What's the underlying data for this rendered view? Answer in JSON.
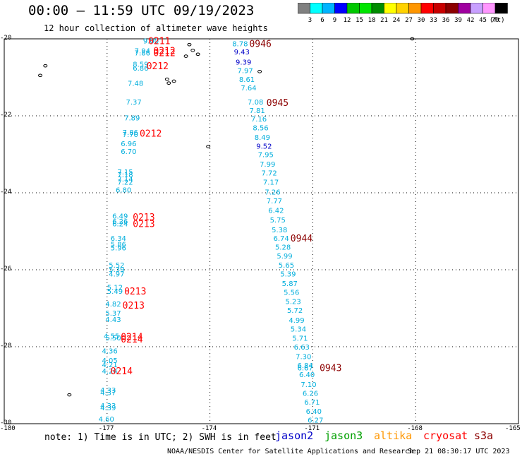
{
  "header": {
    "title": "00:00 — 11:59 UTC 09/19/2023",
    "subtitle": "12 hour collection of altimeter wave heights"
  },
  "colorbar": {
    "ticks": [
      "3",
      "6",
      "9",
      "12",
      "15",
      "18",
      "21",
      "24",
      "27",
      "30",
      "33",
      "36",
      "39",
      "42",
      "45",
      "70"
    ],
    "unit": "(ft)",
    "colors": [
      "#808080",
      "#00ffff",
      "#00b4ff",
      "#0000ff",
      "#00c800",
      "#00e600",
      "#008c00",
      "#ffff00",
      "#ffd200",
      "#ff9600",
      "#ff0000",
      "#c80000",
      "#8c0000",
      "#a000a0",
      "#c8a0ff",
      "#ff96ff",
      "#000000"
    ]
  },
  "map": {
    "x_ticks": [
      "-180",
      "-177",
      "-174",
      "-171",
      "-168",
      "-165"
    ],
    "y_ticks": [
      "-20",
      "-22",
      "-24",
      "-26",
      "-28",
      "-30"
    ],
    "lon_range": [
      -180,
      -165
    ],
    "lat_range": [
      -30,
      -20
    ],
    "gridlines": true
  },
  "observations": {
    "colors": {
      "cyan": "#00aedc",
      "blue": "#0000c8"
    },
    "west_track": [
      {
        "v": "9.00",
        "lon": -175.95,
        "lat": -20.05,
        "c": "cyan"
      },
      {
        "v": "7.94",
        "lon": -176.2,
        "lat": -20.3,
        "c": "cyan"
      },
      {
        "v": "7.86",
        "lon": -176.2,
        "lat": -20.36,
        "c": "cyan"
      },
      {
        "v": "8.59",
        "lon": -176.25,
        "lat": -20.65,
        "c": "cyan"
      },
      {
        "v": "6.86",
        "lon": -176.25,
        "lat": -20.75,
        "c": "cyan"
      },
      {
        "v": "7.48",
        "lon": -176.4,
        "lat": -21.15,
        "c": "cyan"
      },
      {
        "v": "7.37",
        "lon": -176.45,
        "lat": -21.63,
        "c": "cyan"
      },
      {
        "v": "7.89",
        "lon": -176.5,
        "lat": -22.05,
        "c": "cyan"
      },
      {
        "v": "7.86",
        "lon": -176.55,
        "lat": -22.42,
        "c": "cyan"
      },
      {
        "v": "7.70",
        "lon": -176.55,
        "lat": -22.48,
        "c": "cyan"
      },
      {
        "v": "6.96",
        "lon": -176.6,
        "lat": -22.72,
        "c": "cyan"
      },
      {
        "v": "6.70",
        "lon": -176.6,
        "lat": -22.92,
        "c": "cyan"
      },
      {
        "v": "7.15",
        "lon": -176.7,
        "lat": -23.45,
        "c": "cyan"
      },
      {
        "v": "7.18",
        "lon": -176.7,
        "lat": -23.52,
        "c": "cyan"
      },
      {
        "v": "7.14",
        "lon": -176.7,
        "lat": -23.63,
        "c": "cyan"
      },
      {
        "v": "7.22",
        "lon": -176.7,
        "lat": -23.72,
        "c": "cyan"
      },
      {
        "v": "6.80",
        "lon": -176.75,
        "lat": -23.92,
        "c": "cyan"
      },
      {
        "v": "6.49",
        "lon": -176.85,
        "lat": -24.6,
        "c": "cyan"
      },
      {
        "v": "6.26",
        "lon": -176.85,
        "lat": -24.73,
        "c": "cyan"
      },
      {
        "v": "6.24",
        "lon": -176.85,
        "lat": -24.8,
        "c": "cyan"
      },
      {
        "v": "6.34",
        "lon": -176.9,
        "lat": -25.17,
        "c": "cyan"
      },
      {
        "v": "5.86",
        "lon": -176.9,
        "lat": -25.33,
        "c": "cyan"
      },
      {
        "v": "5.96",
        "lon": -176.9,
        "lat": -25.42,
        "c": "cyan"
      },
      {
        "v": "5.52",
        "lon": -176.95,
        "lat": -25.87,
        "c": "cyan"
      },
      {
        "v": "5.39",
        "lon": -176.95,
        "lat": -25.98,
        "c": "cyan"
      },
      {
        "v": "4.97",
        "lon": -176.95,
        "lat": -26.1,
        "c": "cyan"
      },
      {
        "v": "5.12",
        "lon": -177.0,
        "lat": -26.45,
        "c": "cyan"
      },
      {
        "v": "5.49",
        "lon": -177.0,
        "lat": -26.55,
        "c": "cyan"
      },
      {
        "v": "4.82",
        "lon": -177.05,
        "lat": -26.88,
        "c": "cyan"
      },
      {
        "v": "5.37",
        "lon": -177.05,
        "lat": -27.12,
        "c": "cyan"
      },
      {
        "v": "4.43",
        "lon": -177.05,
        "lat": -27.28,
        "c": "cyan"
      },
      {
        "v": "4.55",
        "lon": -177.1,
        "lat": -27.72,
        "c": "cyan"
      },
      {
        "v": "5.50",
        "lon": -177.05,
        "lat": -27.76,
        "c": "cyan"
      },
      {
        "v": "4.36",
        "lon": -177.15,
        "lat": -28.1,
        "c": "cyan"
      },
      {
        "v": "4.05",
        "lon": -177.15,
        "lat": -28.35,
        "c": "cyan"
      },
      {
        "v": "4.21",
        "lon": -177.15,
        "lat": -28.46,
        "c": "cyan"
      },
      {
        "v": "4.24",
        "lon": -177.15,
        "lat": -28.62,
        "c": "cyan"
      },
      {
        "v": "4.33",
        "lon": -177.2,
        "lat": -29.12,
        "c": "cyan"
      },
      {
        "v": "4.37",
        "lon": -177.2,
        "lat": -29.18,
        "c": "cyan"
      },
      {
        "v": "4.33",
        "lon": -177.2,
        "lat": -29.52,
        "c": "cyan"
      },
      {
        "v": "4.39",
        "lon": -177.2,
        "lat": -29.58,
        "c": "cyan"
      },
      {
        "v": "4.60",
        "lon": -177.25,
        "lat": -29.87,
        "c": "cyan"
      }
    ],
    "east_track": [
      {
        "v": "8.78",
        "lon": -173.35,
        "lat": -20.12,
        "c": "cyan"
      },
      {
        "v": "9.43",
        "lon": -173.3,
        "lat": -20.33,
        "c": "blue"
      },
      {
        "v": "9.39",
        "lon": -173.25,
        "lat": -20.6,
        "c": "blue"
      },
      {
        "v": "7.97",
        "lon": -173.2,
        "lat": -20.82,
        "c": "cyan"
      },
      {
        "v": "8.61",
        "lon": -173.15,
        "lat": -21.05,
        "c": "cyan"
      },
      {
        "v": "7.64",
        "lon": -173.1,
        "lat": -21.27,
        "c": "cyan"
      },
      {
        "v": "7.08",
        "lon": -172.9,
        "lat": -21.63,
        "c": "cyan"
      },
      {
        "v": "7.81",
        "lon": -172.85,
        "lat": -21.85,
        "c": "cyan"
      },
      {
        "v": "7.16",
        "lon": -172.8,
        "lat": -22.07,
        "c": "cyan"
      },
      {
        "v": "8.56",
        "lon": -172.75,
        "lat": -22.3,
        "c": "cyan"
      },
      {
        "v": "8.49",
        "lon": -172.7,
        "lat": -22.55,
        "c": "cyan"
      },
      {
        "v": "9.52",
        "lon": -172.65,
        "lat": -22.78,
        "c": "blue"
      },
      {
        "v": "7.95",
        "lon": -172.6,
        "lat": -23.0,
        "c": "cyan"
      },
      {
        "v": "7.99",
        "lon": -172.55,
        "lat": -23.25,
        "c": "cyan"
      },
      {
        "v": "7.72",
        "lon": -172.5,
        "lat": -23.48,
        "c": "cyan"
      },
      {
        "v": "7.17",
        "lon": -172.45,
        "lat": -23.72,
        "c": "cyan"
      },
      {
        "v": "7.26",
        "lon": -172.4,
        "lat": -23.97,
        "c": "cyan"
      },
      {
        "v": "7.77",
        "lon": -172.35,
        "lat": -24.2,
        "c": "cyan"
      },
      {
        "v": "6.42",
        "lon": -172.3,
        "lat": -24.45,
        "c": "cyan"
      },
      {
        "v": "5.75",
        "lon": -172.25,
        "lat": -24.7,
        "c": "cyan"
      },
      {
        "v": "5.38",
        "lon": -172.2,
        "lat": -24.95,
        "c": "cyan"
      },
      {
        "v": "6.74",
        "lon": -172.15,
        "lat": -25.17,
        "c": "cyan"
      },
      {
        "v": "5.28",
        "lon": -172.1,
        "lat": -25.4,
        "c": "cyan"
      },
      {
        "v": "5.99",
        "lon": -172.05,
        "lat": -25.63,
        "c": "cyan"
      },
      {
        "v": "5.65",
        "lon": -172.0,
        "lat": -25.87,
        "c": "cyan"
      },
      {
        "v": "5.39",
        "lon": -171.95,
        "lat": -26.1,
        "c": "cyan"
      },
      {
        "v": "5.87",
        "lon": -171.9,
        "lat": -26.35,
        "c": "cyan"
      },
      {
        "v": "5.56",
        "lon": -171.85,
        "lat": -26.58,
        "c": "cyan"
      },
      {
        "v": "5.23",
        "lon": -171.8,
        "lat": -26.82,
        "c": "cyan"
      },
      {
        "v": "5.72",
        "lon": -171.75,
        "lat": -27.05,
        "c": "cyan"
      },
      {
        "v": "4.99",
        "lon": -171.7,
        "lat": -27.3,
        "c": "cyan"
      },
      {
        "v": "5.34",
        "lon": -171.65,
        "lat": -27.53,
        "c": "cyan"
      },
      {
        "v": "5.71",
        "lon": -171.6,
        "lat": -27.77,
        "c": "cyan"
      },
      {
        "v": "6.63",
        "lon": -171.55,
        "lat": -28.0,
        "c": "cyan"
      },
      {
        "v": "7.30",
        "lon": -171.5,
        "lat": -28.25,
        "c": "cyan"
      },
      {
        "v": "6.84",
        "lon": -171.45,
        "lat": -28.48,
        "c": "cyan"
      },
      {
        "v": "6.67",
        "lon": -171.45,
        "lat": -28.54,
        "c": "cyan"
      },
      {
        "v": "6.40",
        "lon": -171.4,
        "lat": -28.72,
        "c": "cyan"
      },
      {
        "v": "7.10",
        "lon": -171.35,
        "lat": -28.97,
        "c": "cyan"
      },
      {
        "v": "6.26",
        "lon": -171.3,
        "lat": -29.2,
        "c": "cyan"
      },
      {
        "v": "6.71",
        "lon": -171.25,
        "lat": -29.43,
        "c": "cyan"
      },
      {
        "v": "6.40",
        "lon": -171.2,
        "lat": -29.67,
        "c": "cyan"
      },
      {
        "v": "6.27",
        "lon": -171.15,
        "lat": -29.9,
        "c": "cyan"
      }
    ]
  },
  "pass_times": [
    {
      "t": "0211",
      "lon": -175.8,
      "lat": -20.05,
      "color": "#ff0000"
    },
    {
      "t": "0212",
      "lon": -175.65,
      "lat": -20.3,
      "color": "#ff0000"
    },
    {
      "t": "0212",
      "lon": -175.65,
      "lat": -20.36,
      "color": "#ff0000"
    },
    {
      "t": "0212",
      "lon": -175.85,
      "lat": -20.7,
      "color": "#ff0000"
    },
    {
      "t": "0212",
      "lon": -176.05,
      "lat": -22.45,
      "color": "#ff0000"
    },
    {
      "t": "0213",
      "lon": -176.25,
      "lat": -24.62,
      "color": "#ff0000"
    },
    {
      "t": "0213",
      "lon": -176.25,
      "lat": -24.8,
      "color": "#ff0000"
    },
    {
      "t": "0213",
      "lon": -176.5,
      "lat": -26.55,
      "color": "#ff0000"
    },
    {
      "t": "0213",
      "lon": -176.55,
      "lat": -26.92,
      "color": "#ff0000"
    },
    {
      "t": "0214",
      "lon": -176.6,
      "lat": -27.73,
      "color": "#ff0000"
    },
    {
      "t": "0214",
      "lon": -176.6,
      "lat": -27.8,
      "color": "#ff0000"
    },
    {
      "t": "0214",
      "lon": -176.9,
      "lat": -28.62,
      "color": "#ff0000"
    },
    {
      "t": "0946",
      "lon": -172.85,
      "lat": -20.12,
      "color": "#8c0000"
    },
    {
      "t": "0945",
      "lon": -172.35,
      "lat": -21.65,
      "color": "#8c0000"
    },
    {
      "t": "0944",
      "lon": -171.65,
      "lat": -25.17,
      "color": "#8c0000"
    },
    {
      "t": "0943",
      "lon": -170.8,
      "lat": -28.54,
      "color": "#8c0000"
    }
  ],
  "footer": {
    "note": "note: 1) Time is in UTC; 2) SWH is in feet",
    "satellites": [
      {
        "name": "jason2",
        "color": "#0000c8"
      },
      {
        "name": "jason3",
        "color": "#00a000"
      },
      {
        "name": "altika",
        "color": "#ff9600"
      },
      {
        "name": "cryosat",
        "color": "#ff0000"
      },
      {
        "name": "s3a",
        "color": "#8c0000"
      }
    ],
    "credit": "NOAA/NESDIS Center for Satellite Applications and Research",
    "timestamp": "Sep 21 08:30:17 UTC 2023"
  }
}
